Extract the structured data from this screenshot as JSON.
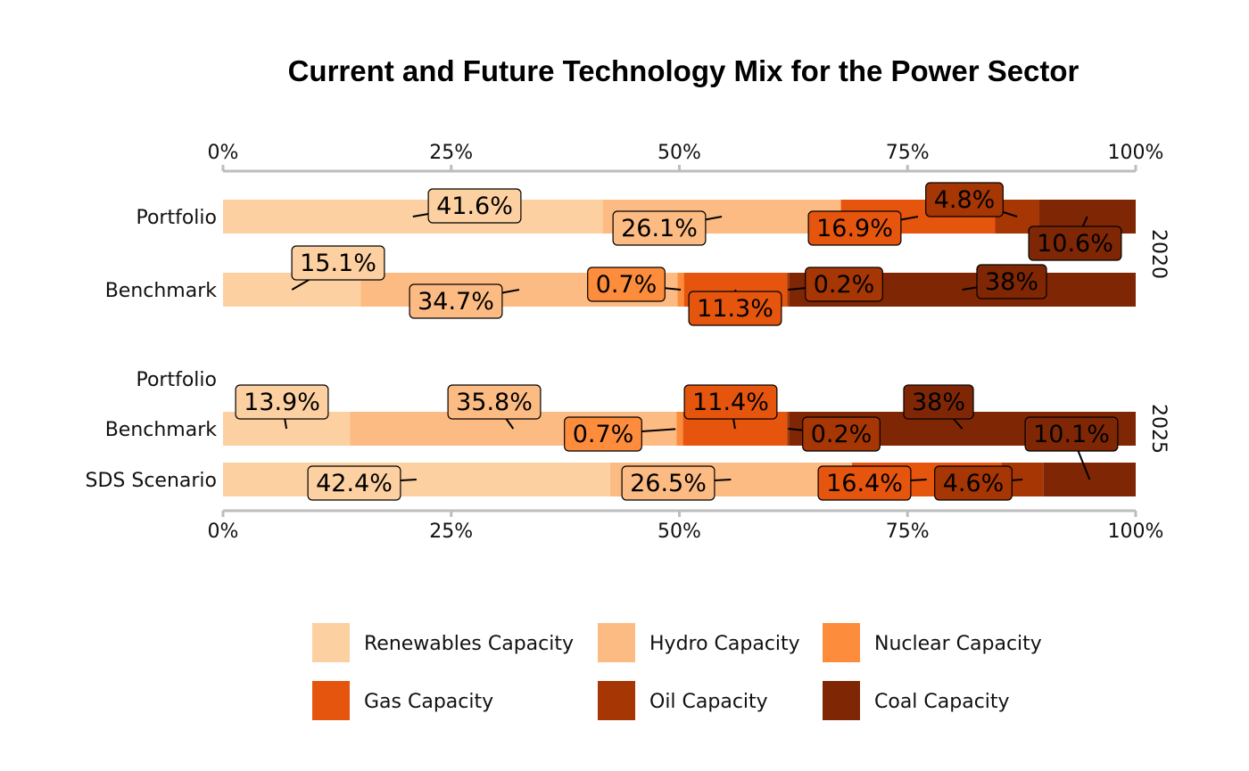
{
  "chart_data": {
    "type": "bar",
    "orientation": "horizontal",
    "stacked": true,
    "title": "Current and Future Technology Mix for the Power Sector",
    "xlim": [
      0,
      1
    ],
    "x_ticks": [
      "0%",
      "25%",
      "50%",
      "75%",
      "100%"
    ],
    "legend_position": "bottom",
    "series": [
      {
        "name": "Renewables Capacity",
        "color": "#FDD0A2"
      },
      {
        "name": "Hydro Capacity",
        "color": "#FDBB84"
      },
      {
        "name": "Nuclear Capacity",
        "color": "#FD8D3C"
      },
      {
        "name": "Gas Capacity",
        "color": "#E6550D"
      },
      {
        "name": "Oil Capacity",
        "color": "#A63603"
      },
      {
        "name": "Coal Capacity",
        "color": "#7F2704"
      }
    ],
    "facets": [
      {
        "label": "2020",
        "rows": [
          {
            "label": "Portfolio",
            "values": [
              0.416,
              0.261,
              0.0,
              0.169,
              0.048,
              0.106
            ],
            "data_labels": [
              "41.6%",
              "26.1%",
              "",
              "16.9%",
              "4.8%",
              "10.6%"
            ]
          },
          {
            "label": "Benchmark",
            "values": [
              0.151,
              0.347,
              0.007,
              0.113,
              0.002,
              0.38
            ],
            "data_labels": [
              "15.1%",
              "34.7%",
              "0.7%",
              "11.3%",
              "0.2%",
              "38%"
            ]
          }
        ]
      },
      {
        "label": "2025",
        "rows": [
          {
            "label": "Portfolio",
            "values": [
              0,
              0,
              0,
              0,
              0,
              0
            ],
            "data_labels": [
              "",
              "",
              "",
              "",
              "",
              ""
            ]
          },
          {
            "label": "Benchmark",
            "values": [
              0.139,
              0.358,
              0.007,
              0.114,
              0.002,
              0.38
            ],
            "data_labels": [
              "13.9%",
              "35.8%",
              "0.7%",
              "11.4%",
              "0.2%",
              "38%"
            ]
          },
          {
            "label": "SDS Scenario",
            "values": [
              0.424,
              0.265,
              0.0,
              0.164,
              0.046,
              0.101
            ],
            "data_labels": [
              "42.4%",
              "26.5%",
              "",
              "16.4%",
              "4.6%",
              "10.1%"
            ]
          }
        ]
      }
    ]
  }
}
